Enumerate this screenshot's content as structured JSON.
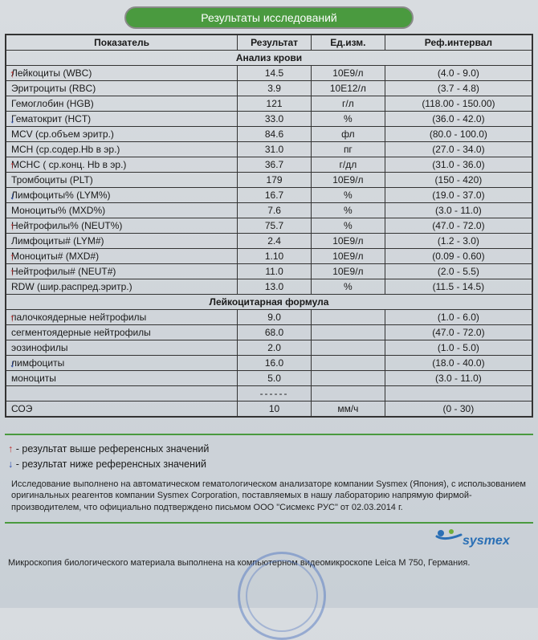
{
  "title": "Результаты исследований",
  "columns": {
    "param": "Показатель",
    "result": "Результат",
    "unit": "Ед.изм.",
    "ref": "Реф.интервал"
  },
  "arrow_colors": {
    "up": "#c03030",
    "down": "#2a4db0"
  },
  "section1_title": "Анализ крови",
  "section1": [
    {
      "dir": "up",
      "param": "Лейкоциты (WBC)",
      "result": "14.5",
      "unit": "10E9/л",
      "ref": "(4.0 - 9.0)"
    },
    {
      "dir": "",
      "param": "Эритроциты (RBC)",
      "result": "3.9",
      "unit": "10E12/л",
      "ref": "(3.7 - 4.8)"
    },
    {
      "dir": "",
      "param": "Гемоглобин (HGB)",
      "result": "121",
      "unit": "г/л",
      "ref": "(118.00 - 150.00)"
    },
    {
      "dir": "down",
      "param": "Гематокрит (HCT)",
      "result": "33.0",
      "unit": "%",
      "ref": "(36.0 - 42.0)"
    },
    {
      "dir": "",
      "param": "MCV (ср.объем эритр.)",
      "result": "84.6",
      "unit": "фл",
      "ref": "(80.0 - 100.0)"
    },
    {
      "dir": "",
      "param": "MCH (ср.содер.Hb в эр.)",
      "result": "31.0",
      "unit": "пг",
      "ref": "(27.0 - 34.0)"
    },
    {
      "dir": "up",
      "param": "MCHC ( ср.конц. Hb в эр.)",
      "result": "36.7",
      "unit": "г/дл",
      "ref": "(31.0 - 36.0)"
    },
    {
      "dir": "",
      "param": "Тромбоциты (PLT)",
      "result": "179",
      "unit": "10E9/л",
      "ref": "(150 - 420)"
    },
    {
      "dir": "down",
      "param": "Лимфоциты% (LYM%)",
      "result": "16.7",
      "unit": "%",
      "ref": "(19.0 - 37.0)"
    },
    {
      "dir": "",
      "param": "Моноциты% (MXD%)",
      "result": "7.6",
      "unit": "%",
      "ref": "(3.0 - 11.0)"
    },
    {
      "dir": "up",
      "param": "Нейтрофилы% (NEUT%)",
      "result": "75.7",
      "unit": "%",
      "ref": "(47.0 - 72.0)"
    },
    {
      "dir": "",
      "param": "Лимфоциты# (LYM#)",
      "result": "2.4",
      "unit": "10E9/л",
      "ref": "(1.2 - 3.0)"
    },
    {
      "dir": "up",
      "param": "Моноциты# (MXD#)",
      "result": "1.10",
      "unit": "10E9/л",
      "ref": "(0.09 - 0.60)"
    },
    {
      "dir": "up",
      "param": "Нейтрофилы# (NEUT#)",
      "result": "11.0",
      "unit": "10E9/л",
      "ref": "(2.0 - 5.5)"
    },
    {
      "dir": "",
      "param": "RDW (шир.распред.эритр.)",
      "result": "13.0",
      "unit": "%",
      "ref": "(11.5 - 14.5)"
    }
  ],
  "section2_title": "Лейкоцитарная формула",
  "section2": [
    {
      "dir": "up",
      "param": "палочкоядерные  нейтрофилы",
      "result": "9.0",
      "unit": "",
      "ref": "(1.0 - 6.0)"
    },
    {
      "dir": "",
      "param": "сегментоядерные нейтрофилы",
      "result": "68.0",
      "unit": "",
      "ref": "(47.0 - 72.0)"
    },
    {
      "dir": "",
      "param": "эозинофилы",
      "result": "2.0",
      "unit": "",
      "ref": "(1.0 - 5.0)"
    },
    {
      "dir": "down",
      "param": "лимфоциты",
      "result": "16.0",
      "unit": "",
      "ref": "(18.0 - 40.0)"
    },
    {
      "dir": "",
      "param": "моноциты",
      "result": "5.0",
      "unit": "",
      "ref": "(3.0 - 11.0)"
    }
  ],
  "esr": {
    "param": "СОЭ",
    "result": "10",
    "unit": "мм/ч",
    "ref": "(0 - 30)"
  },
  "legend_up": "- результат выше референсных значений",
  "legend_down": "- результат ниже референсных значений",
  "footnote": "Исследование выполнено на автоматическом гематологическом анализаторе  компании Sysmex (Япония), с использованием   оригинальных реагентов компании Sysmex  Corporation, поставляемых в нашу лабораторию напрямую фирмой-производителем, что официально  подтверждено письмом  ООО \"Сисмекс РУС\"  от 02.03.2014 г.",
  "brand": "sysmex",
  "microscopy": "Микроскопия биологического материала выполнена на компьютерном видеомикроскопе Leica М 750, Германия."
}
